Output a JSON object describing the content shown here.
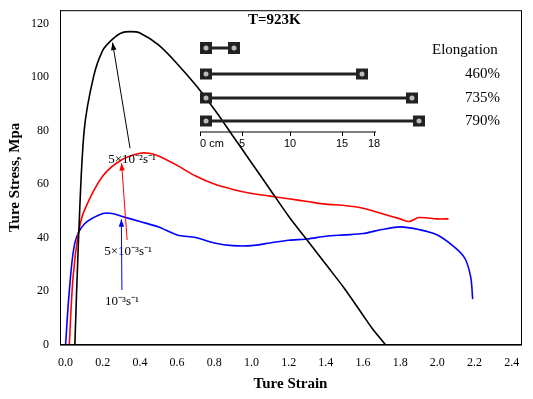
{
  "chart_data": {
    "type": "line",
    "x_label": "Ture Strain",
    "y_label": "Ture Stress, Mpa",
    "xlim": [
      -0.03,
      2.45
    ],
    "xticks": [
      {
        "value": 0,
        "label": "0.0"
      },
      0.2,
      0.4,
      0.6,
      0.8,
      {
        "value": 1,
        "label": "1.0"
      },
      1.2,
      1.4,
      1.6,
      1.8,
      {
        "value": 2,
        "label": "2.0"
      },
      2.2,
      2.4
    ],
    "ylim": [
      0,
      125
    ],
    "yticks": [
      0,
      20,
      40,
      60,
      80,
      100,
      120
    ],
    "grid": false,
    "series": [
      {
        "name": "5×10⁻²s⁻¹",
        "color": "#000000",
        "x": [
          0.05,
          0.07,
          0.1,
          0.15,
          0.2,
          0.25,
          0.3,
          0.35,
          0.4,
          0.5,
          0.6,
          0.7,
          0.8,
          0.9,
          1.0,
          1.1,
          1.2,
          1.3,
          1.4,
          1.5,
          1.6,
          1.65,
          1.72
        ],
        "values": [
          0,
          40,
          80,
          100,
          110,
          114,
          116.5,
          117,
          116.5,
          112,
          105,
          97,
          88,
          78,
          68,
          58,
          48,
          39,
          30,
          21,
          11,
          6,
          0
        ]
      },
      {
        "name": "5×10⁻³s⁻¹",
        "color": "#ff0000",
        "x": [
          0.02,
          0.04,
          0.07,
          0.1,
          0.2,
          0.3,
          0.4,
          0.45,
          0.5,
          0.6,
          0.7,
          0.8,
          0.9,
          1.0,
          1.1,
          1.2,
          1.3,
          1.4,
          1.5,
          1.6,
          1.7,
          1.8,
          1.85,
          1.9,
          2.0,
          2.06
        ],
        "values": [
          0,
          25,
          42,
          50,
          63,
          69,
          71.5,
          71.5,
          70.5,
          67,
          63,
          60,
          58,
          56.5,
          55.5,
          54.5,
          53.5,
          52.5,
          52,
          51,
          49,
          47,
          46,
          47.5,
          47,
          47
        ]
      },
      {
        "name": "10⁻³s⁻¹",
        "color": "#0000ff",
        "x": [
          0,
          0.02,
          0.05,
          0.1,
          0.2,
          0.25,
          0.3,
          0.4,
          0.5,
          0.6,
          0.7,
          0.8,
          0.9,
          1.0,
          1.1,
          1.2,
          1.3,
          1.4,
          1.5,
          1.6,
          1.7,
          1.8,
          1.9,
          2.0,
          2.1,
          2.15,
          2.18,
          2.19
        ],
        "values": [
          0,
          20,
          38,
          45,
          49,
          49,
          48,
          46,
          44,
          41,
          40,
          38,
          37,
          37,
          38,
          39,
          39.5,
          40.5,
          41,
          41.5,
          43,
          44,
          43,
          41,
          36,
          32,
          25,
          17
        ]
      }
    ],
    "annotations": {
      "temperature": "T=923K",
      "heading": "Elongation",
      "elongations": [
        "460%",
        "735%",
        "790%"
      ],
      "scale_labels": [
        "0 cm",
        "5",
        "10",
        "15",
        "18"
      ]
    }
  }
}
